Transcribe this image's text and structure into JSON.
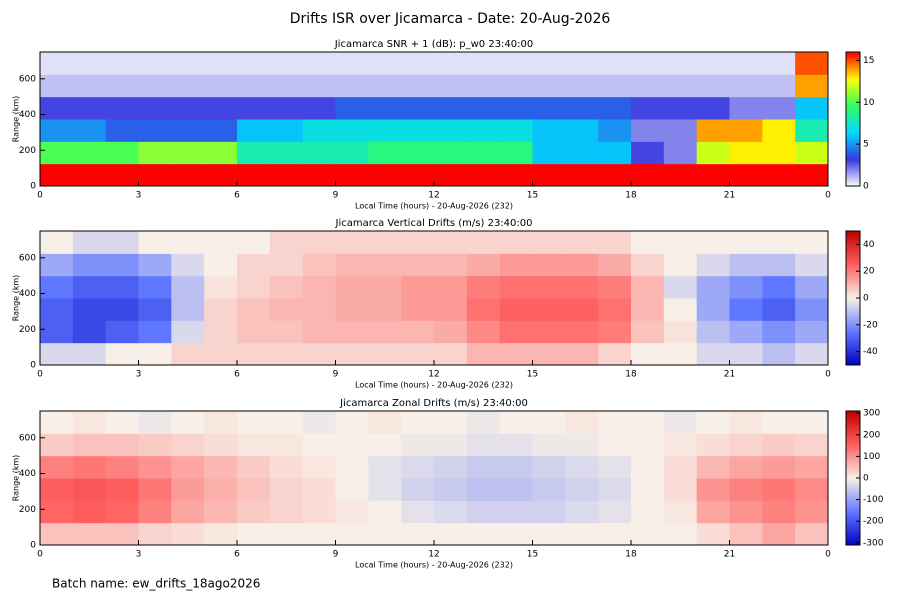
{
  "title": "Drifts ISR over Jicamarca - Date: 20-Aug-2026",
  "footer": "Batch name: ew_drifts_18ago2026",
  "chart_data": [
    {
      "type": "heatmap",
      "title": "Jicamarca SNR + 1 (dB): p_w0 23:40:00",
      "x_label": "Local Time (hours) - 20-Aug-2026 (232)",
      "y_label": "Range (km)",
      "x": [
        0,
        1,
        2,
        3,
        4,
        5,
        6,
        7,
        8,
        9,
        10,
        11,
        12,
        13,
        14,
        15,
        16,
        17,
        18,
        19,
        20,
        21,
        22,
        23,
        24
      ],
      "y": [
        0,
        125,
        250,
        375,
        500,
        625,
        750
      ],
      "xlim": [
        0,
        24
      ],
      "ylim": [
        0,
        750
      ],
      "xticks": [
        0,
        3,
        6,
        9,
        12,
        15,
        18,
        21,
        {
          "value": 24,
          "label": "0"
        }
      ],
      "yticks": [
        0,
        200,
        400,
        600
      ],
      "zlim": [
        0,
        16
      ],
      "zticks": [
        0,
        5,
        10,
        15
      ],
      "colormap": [
        "#ffffff",
        "#3838e0",
        "#00d8ff",
        "#30ff60",
        "#ffff00",
        "#ff0000"
      ],
      "values": [
        [
          16,
          16,
          16,
          16,
          16,
          16,
          16,
          16,
          16,
          16,
          16,
          16,
          16,
          16,
          16,
          16,
          16,
          16,
          16,
          16,
          16,
          16,
          16,
          16
        ],
        [
          10,
          10,
          10,
          11,
          11,
          11,
          8,
          8,
          8,
          8,
          9,
          9,
          9,
          9,
          9,
          6,
          6,
          6,
          3,
          2,
          12,
          13,
          13,
          12
        ],
        [
          5,
          5,
          4,
          4,
          4,
          4,
          6,
          6,
          7,
          7,
          7,
          7,
          7,
          7,
          7,
          6,
          6,
          5,
          2,
          2,
          14,
          14,
          13,
          8
        ],
        [
          3,
          3,
          3,
          3,
          3,
          3,
          3,
          3,
          3,
          4,
          4,
          4,
          4,
          4,
          4,
          4,
          4,
          4,
          3,
          3,
          3,
          2,
          2,
          6
        ],
        [
          1,
          1,
          1,
          1,
          1,
          1,
          1,
          1,
          1,
          1,
          1,
          1,
          1,
          1,
          1,
          1,
          1,
          1,
          1,
          1,
          1,
          1,
          1,
          14
        ],
        [
          0.5,
          0.5,
          0.5,
          0.5,
          0.5,
          0.5,
          0.5,
          0.5,
          0.5,
          0.5,
          0.5,
          0.5,
          0.5,
          0.5,
          0.5,
          0.5,
          0.5,
          0.5,
          0.5,
          0.5,
          0.5,
          0.5,
          0.5,
          15
        ]
      ]
    },
    {
      "type": "heatmap",
      "title": "Jicamarca Vertical Drifts (m/s) 23:40:00",
      "x_label": "Local Time (hours) - 20-Aug-2026 (232)",
      "y_label": "Range (km)",
      "x": [
        0,
        1,
        2,
        3,
        4,
        5,
        6,
        7,
        8,
        9,
        10,
        11,
        12,
        13,
        14,
        15,
        16,
        17,
        18,
        19,
        20,
        21,
        22,
        23,
        24
      ],
      "y": [
        0,
        125,
        250,
        375,
        500,
        625,
        750
      ],
      "xlim": [
        0,
        24
      ],
      "ylim": [
        0,
        750
      ],
      "xticks": [
        0,
        3,
        6,
        9,
        12,
        15,
        18,
        21,
        {
          "value": 24,
          "label": "0"
        }
      ],
      "yticks": [
        0,
        200,
        400,
        600
      ],
      "zlim": [
        -50,
        50
      ],
      "zticks": [
        -40,
        -20,
        0,
        20,
        40
      ],
      "colormap": [
        "#0000c0",
        "#6078ff",
        "#f8f0e8",
        "#ff6060",
        "#c00000"
      ],
      "values": [
        [
          -5,
          -5,
          0,
          0,
          5,
          5,
          5,
          5,
          5,
          5,
          5,
          5,
          5,
          10,
          10,
          10,
          10,
          5,
          0,
          0,
          -5,
          -5,
          -10,
          -5
        ],
        [
          -30,
          -35,
          -30,
          -25,
          -5,
          5,
          8,
          8,
          10,
          10,
          10,
          10,
          12,
          18,
          22,
          22,
          22,
          20,
          8,
          2,
          -10,
          -15,
          -20,
          -15
        ],
        [
          -30,
          -35,
          -35,
          -30,
          -10,
          5,
          8,
          10,
          10,
          12,
          12,
          15,
          15,
          22,
          25,
          25,
          25,
          22,
          10,
          0,
          -15,
          -25,
          -30,
          -20
        ],
        [
          -25,
          -30,
          -30,
          -25,
          -10,
          2,
          5,
          8,
          10,
          12,
          12,
          15,
          15,
          20,
          22,
          22,
          22,
          20,
          10,
          -5,
          -15,
          -20,
          -25,
          -15
        ],
        [
          -15,
          -20,
          -20,
          -15,
          -5,
          0,
          5,
          5,
          8,
          10,
          10,
          10,
          10,
          12,
          15,
          15,
          15,
          12,
          5,
          0,
          -5,
          -10,
          -10,
          -5
        ],
        [
          0,
          -5,
          -5,
          0,
          0,
          0,
          0,
          5,
          5,
          5,
          5,
          5,
          5,
          5,
          5,
          5,
          5,
          5,
          0,
          0,
          0,
          0,
          0,
          0
        ]
      ]
    },
    {
      "type": "heatmap",
      "title": "Jicamarca Zonal Drifts (m/s) 23:40:00",
      "x_label": "Local Time (hours) - 20-Aug-2026 (232)",
      "y_label": "Range (km)",
      "x": [
        0,
        1,
        2,
        3,
        4,
        5,
        6,
        7,
        8,
        9,
        10,
        11,
        12,
        13,
        14,
        15,
        16,
        17,
        18,
        19,
        20,
        21,
        22,
        23,
        24
      ],
      "y": [
        0,
        125,
        250,
        375,
        500,
        625,
        750
      ],
      "xlim": [
        0,
        24
      ],
      "ylim": [
        0,
        750
      ],
      "xticks": [
        0,
        3,
        6,
        9,
        12,
        15,
        18,
        21,
        {
          "value": 24,
          "label": "0"
        }
      ],
      "yticks": [
        0,
        200,
        400,
        600
      ],
      "zlim": [
        -310,
        310
      ],
      "zticks": [
        -300,
        -200,
        -100,
        0,
        100,
        200,
        300
      ],
      "colormap": [
        "#0000c0",
        "#6078ff",
        "#f8f0e8",
        "#ff6060",
        "#c00000"
      ],
      "values": [
        [
          50,
          50,
          50,
          30,
          20,
          10,
          0,
          0,
          0,
          0,
          0,
          0,
          0,
          0,
          0,
          0,
          0,
          0,
          0,
          0,
          20,
          50,
          80,
          50
        ],
        [
          150,
          160,
          150,
          120,
          80,
          60,
          40,
          30,
          20,
          10,
          0,
          -20,
          -30,
          -40,
          -40,
          -40,
          -30,
          -20,
          0,
          10,
          80,
          100,
          120,
          100
        ],
        [
          160,
          170,
          160,
          130,
          90,
          70,
          50,
          30,
          20,
          0,
          -20,
          -40,
          -50,
          -60,
          -60,
          -50,
          -40,
          -30,
          0,
          20,
          100,
          120,
          130,
          110
        ],
        [
          120,
          130,
          120,
          100,
          80,
          60,
          40,
          20,
          10,
          0,
          -20,
          -30,
          -40,
          -50,
          -50,
          -40,
          -30,
          -20,
          0,
          20,
          60,
          80,
          90,
          80
        ],
        [
          40,
          50,
          50,
          40,
          30,
          20,
          10,
          10,
          0,
          0,
          0,
          -10,
          -10,
          -20,
          -20,
          -10,
          -10,
          0,
          0,
          10,
          20,
          30,
          40,
          30
        ],
        [
          0,
          10,
          0,
          -10,
          0,
          10,
          0,
          0,
          -10,
          0,
          10,
          0,
          0,
          -10,
          0,
          0,
          10,
          0,
          0,
          -10,
          0,
          10,
          0,
          0
        ]
      ]
    }
  ]
}
